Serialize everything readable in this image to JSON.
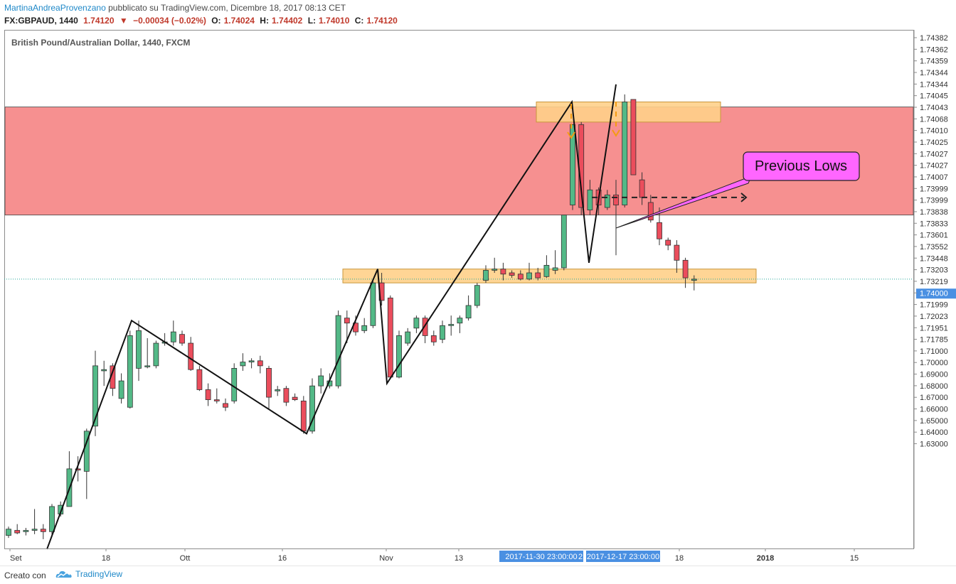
{
  "header": {
    "author": "MartinaAndreaProvenzano",
    "published": "pubblicato su TradingView.com, Dicembre 18, 2017 08:13 CET",
    "symbol": "FX:GBPAUD, 1440",
    "last": "1.74120",
    "change": "−0.00034 (−0.02%)",
    "o_label": "O:",
    "o_value": "1.74024",
    "h_label": "H:",
    "h_value": "1.74402",
    "l_label": "L:",
    "l_value": "1.74010",
    "c_label": "C:",
    "c_value": "1.74120"
  },
  "footer": {
    "made_with": "Creato con",
    "brand": "TradingView"
  },
  "chart_data": {
    "type": "candlestick",
    "title": "British Pound/Australian Dollar, 1440, FXCM",
    "colors": {
      "up": "#53b987",
      "down": "#eb4d5c",
      "resistance_zone": "#f47c7c",
      "level": "#ffd08a",
      "callout": "#ff66ff",
      "arrow": "#f39c12",
      "axis": "#4a90e2"
    },
    "y_axis_labels": [
      "1.74382",
      "1.74362",
      "1.74359",
      "1.74344",
      "1.74344",
      "1.74045",
      "1.74043",
      "1.74068",
      "1.74010",
      "1.74025",
      "1.74027",
      "1.74027",
      "1.74007",
      "1.73999",
      "1.73999",
      "1.73838",
      "1.73833",
      "1.73601",
      "1.73552",
      "1.73448",
      "1.73203",
      "1.73219",
      "1.74000",
      "1.71999",
      "1.72023",
      "1.71951",
      "1.71785",
      "1.71000",
      "1.70000",
      "1.69000",
      "1.68000",
      "1.67000",
      "1.66000",
      "1.65000",
      "1.64000",
      "1.63000"
    ],
    "highlighted_price": "1.74000",
    "x_axis_labels": [
      "Set",
      "18",
      "Ott",
      "16",
      "Nov",
      "13",
      "18",
      "2018",
      "15"
    ],
    "crosshair_labels": [
      "2017-11-30 23:00:00",
      "2",
      "2017-12-17 23:00:00"
    ],
    "annotation": "Previous Lows",
    "candles": [
      [
        1.6285,
        1.6275,
        1.632,
        1.631
      ],
      [
        1.6305,
        1.629,
        1.633,
        1.6295
      ],
      [
        1.63,
        1.6285,
        1.6315,
        1.6305
      ],
      [
        1.6305,
        1.629,
        1.639,
        1.631
      ],
      [
        1.631,
        1.627,
        1.633,
        1.63
      ],
      [
        1.63,
        1.628,
        1.641,
        1.64
      ],
      [
        1.637,
        1.636,
        1.642,
        1.6405
      ],
      [
        1.64,
        1.64,
        1.662,
        1.655
      ],
      [
        1.655,
        1.65,
        1.66,
        1.6545
      ],
      [
        1.654,
        1.643,
        1.671,
        1.67
      ],
      [
        1.672,
        1.668,
        1.702,
        1.696
      ],
      [
        1.694,
        1.688,
        1.698,
        1.6945
      ],
      [
        1.696,
        1.684,
        1.697,
        1.687
      ],
      [
        1.683,
        1.681,
        1.693,
        1.69
      ],
      [
        1.6795,
        1.679,
        1.71,
        1.708
      ],
      [
        1.695,
        1.69,
        1.714,
        1.71
      ],
      [
        1.696,
        1.695,
        1.707,
        1.696
      ],
      [
        1.696,
        1.695,
        1.706,
        1.705
      ],
      [
        1.705,
        1.704,
        1.709,
        1.7055
      ],
      [
        1.7055,
        1.704,
        1.714,
        1.7095
      ],
      [
        1.7085,
        1.704,
        1.71,
        1.705
      ],
      [
        1.705,
        1.694,
        1.7075,
        1.6945
      ],
      [
        1.6945,
        1.686,
        1.696,
        1.6865
      ],
      [
        1.6865,
        1.68,
        1.689,
        1.6825
      ],
      [
        1.6825,
        1.681,
        1.687,
        1.682
      ],
      [
        1.681,
        1.678,
        1.683,
        1.6795
      ],
      [
        1.682,
        1.681,
        1.697,
        1.695
      ],
      [
        1.696,
        1.694,
        1.701,
        1.6975
      ],
      [
        1.6975,
        1.695,
        1.699,
        1.698
      ],
      [
        1.698,
        1.693,
        1.7,
        1.696
      ],
      [
        1.695,
        1.679,
        1.696,
        1.6835
      ],
      [
        1.686,
        1.684,
        1.688,
        1.6865
      ],
      [
        1.687,
        1.68,
        1.688,
        1.6815
      ],
      [
        1.6835,
        1.682,
        1.685,
        1.6825
      ],
      [
        1.682,
        1.669,
        1.684,
        1.67
      ],
      [
        1.67,
        1.669,
        1.691,
        1.688
      ],
      [
        1.688,
        1.685,
        1.695,
        1.692
      ],
      [
        1.688,
        1.687,
        1.693,
        1.69
      ],
      [
        1.688,
        1.687,
        1.718,
        1.716
      ],
      [
        1.715,
        1.705,
        1.718,
        1.713
      ],
      [
        1.713,
        1.708,
        1.716,
        1.7095
      ],
      [
        1.71,
        1.709,
        1.715,
        1.712
      ],
      [
        1.712,
        1.711,
        1.73,
        1.729
      ],
      [
        1.729,
        1.72,
        1.733,
        1.722
      ],
      [
        1.723,
        1.691,
        1.724,
        1.6915
      ],
      [
        1.6915,
        1.691,
        1.71,
        1.708
      ],
      [
        1.705,
        1.704,
        1.711,
        1.7095
      ],
      [
        1.711,
        1.709,
        1.716,
        1.715
      ],
      [
        1.715,
        1.705,
        1.716,
        1.708
      ],
      [
        1.708,
        1.704,
        1.71,
        1.7055
      ],
      [
        1.7065,
        1.705,
        1.714,
        1.712
      ],
      [
        1.712,
        1.708,
        1.716,
        1.7125
      ],
      [
        1.713,
        1.709,
        1.716,
        1.715
      ],
      [
        1.715,
        1.714,
        1.724,
        1.72
      ],
      [
        1.72,
        1.719,
        1.729,
        1.728
      ],
      [
        1.73,
        1.729,
        1.736,
        1.734
      ],
      [
        1.734,
        1.733,
        1.739,
        1.7345
      ],
      [
        1.7345,
        1.73,
        1.737,
        1.7325
      ],
      [
        1.733,
        1.731,
        1.734,
        1.732
      ],
      [
        1.7325,
        1.73,
        1.734,
        1.7305
      ],
      [
        1.7305,
        1.73,
        1.737,
        1.733
      ],
      [
        1.733,
        1.73,
        1.735,
        1.731
      ],
      [
        1.7315,
        1.731,
        1.74,
        1.736
      ],
      [
        1.734,
        1.7325,
        1.742,
        1.735
      ],
      [
        1.735,
        1.734,
        1.756,
        1.756
      ],
      [
        1.76,
        1.758,
        1.792,
        1.792
      ],
      [
        1.792,
        1.756,
        1.793,
        1.759
      ],
      [
        1.758,
        1.756,
        1.77,
        1.766
      ],
      [
        1.766,
        1.756,
        1.767,
        1.76
      ],
      [
        1.759,
        1.758,
        1.766,
        1.764
      ],
      [
        1.764,
        1.74,
        1.77,
        1.76
      ],
      [
        1.76,
        1.759,
        1.804,
        1.801
      ],
      [
        1.802,
        1.773,
        1.802,
        1.772
      ],
      [
        1.77,
        1.76,
        1.773,
        1.763
      ],
      [
        1.761,
        1.753,
        1.764,
        1.754
      ],
      [
        1.753,
        1.744,
        1.759,
        1.7465
      ],
      [
        1.746,
        1.742,
        1.747,
        1.744
      ],
      [
        1.744,
        1.733,
        1.746,
        1.738
      ],
      [
        1.738,
        1.727,
        1.739,
        1.731
      ],
      [
        1.73,
        1.726,
        1.732,
        1.7305
      ]
    ]
  }
}
